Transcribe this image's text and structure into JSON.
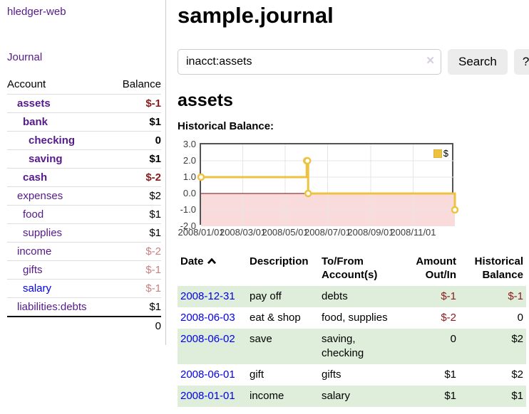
{
  "colors": {
    "link_purple": "#551a8b",
    "link_blue": "#0000ee",
    "negative_strong": "#8b1a1a",
    "negative_soft": "#c98080",
    "row_stripe_green": "#deeeda",
    "chart_line_gold": "#edc240",
    "button_gray": "#ececec"
  },
  "sidebar": {
    "app_title": "hledger-web",
    "journal_link": "Journal",
    "accounts_table": {
      "account_header": "Account",
      "balance_header": "Balance",
      "rows": [
        {
          "name": "assets",
          "indent": 1,
          "bold": true,
          "balance": "$-1",
          "balance_style": "negative-strong"
        },
        {
          "name": "bank",
          "indent": 2,
          "bold": true,
          "balance": "$1",
          "balance_style": "normal"
        },
        {
          "name": "checking",
          "indent": 3,
          "bold": true,
          "balance": "0",
          "balance_style": "normal"
        },
        {
          "name": "saving",
          "indent": 3,
          "bold": true,
          "balance": "$1",
          "balance_style": "normal"
        },
        {
          "name": "cash",
          "indent": 2,
          "bold": true,
          "balance": "$-2",
          "balance_style": "negative-strong"
        },
        {
          "name": "expenses",
          "indent": 1,
          "bold": false,
          "balance": "$2",
          "balance_style": "normal"
        },
        {
          "name": "food",
          "indent": 2,
          "bold": false,
          "balance": "$1",
          "balance_style": "normal"
        },
        {
          "name": "supplies",
          "indent": 2,
          "bold": false,
          "balance": "$1",
          "balance_style": "normal"
        },
        {
          "name": "income",
          "indent": 1,
          "bold": false,
          "balance": "$-2",
          "balance_style": "negative-soft"
        },
        {
          "name": "gifts",
          "indent": 2,
          "bold": false,
          "balance": "$-1",
          "balance_style": "negative-soft"
        },
        {
          "name": "salary",
          "indent": 2,
          "bold": false,
          "balance": "$-1",
          "balance_style": "negative-soft",
          "link_color": "blue"
        },
        {
          "name": "liabilities:debts",
          "indent": 1,
          "bold": false,
          "balance": "$1",
          "balance_style": "normal"
        }
      ],
      "total": "0"
    }
  },
  "main": {
    "title": "sample.journal",
    "search": {
      "value": "inacct:assets",
      "clear_icon": "✕",
      "search_button": "Search",
      "help_button": "?"
    },
    "account_heading": "assets",
    "chart_title": "Historical Balance:"
  },
  "chart_data": {
    "type": "line",
    "step": true,
    "title": "Historical Balance",
    "legend": {
      "label": "$",
      "position": "top-right"
    },
    "x_range": [
      "2008-01-01",
      "2008-12-31"
    ],
    "ylim": [
      -2,
      3
    ],
    "y_ticks": [
      3,
      2,
      1,
      0,
      -1,
      -2
    ],
    "x_ticks": [
      {
        "date": "2008-01-01",
        "label": "2008/01/01"
      },
      {
        "date": "2008-03-01",
        "label": "2008/03/01"
      },
      {
        "date": "2008-05-01",
        "label": "2008/05/01"
      },
      {
        "date": "2008-07-01",
        "label": "2008/07/01"
      },
      {
        "date": "2008-09-01",
        "label": "2008/09/01"
      },
      {
        "date": "2008-11-01",
        "label": "2008/11/01"
      }
    ],
    "series": [
      {
        "name": "$",
        "color": "#edc240",
        "points": [
          [
            "2008-01-01",
            1
          ],
          [
            "2008-06-01",
            2
          ],
          [
            "2008-06-02",
            2
          ],
          [
            "2008-06-03",
            0
          ],
          [
            "2008-12-31",
            -1
          ]
        ]
      }
    ],
    "grid": true,
    "grid_color": "#e6e6e6",
    "negative_region_fill": "#f9dbdb",
    "zero_line_color": "#8b0000",
    "plot_border_color": "#545454"
  },
  "register_table": {
    "headers": {
      "date": "Date",
      "description": "Description",
      "accounts": "To/From\nAccount(s)",
      "amount": "Amount\nOut/In",
      "balance": "Historical\nBalance"
    },
    "sort": {
      "column": "date",
      "direction": "ascending"
    },
    "rows": [
      {
        "date": "2008-12-31",
        "description": "pay off",
        "accounts": "debts",
        "amount": "$-1",
        "amount_negative": true,
        "balance": "$-1",
        "balance_negative": true
      },
      {
        "date": "2008-06-03",
        "description": "eat & shop",
        "accounts": "food, supplies",
        "amount": "$-2",
        "amount_negative": true,
        "balance": "0",
        "balance_negative": false
      },
      {
        "date": "2008-06-02",
        "description": "save",
        "accounts": "saving, checking",
        "amount": "0",
        "amount_negative": false,
        "balance": "$2",
        "balance_negative": false
      },
      {
        "date": "2008-06-01",
        "description": "gift",
        "accounts": "gifts",
        "amount": "$1",
        "amount_negative": false,
        "balance": "$2",
        "balance_negative": false
      },
      {
        "date": "2008-01-01",
        "description": "income",
        "accounts": "salary",
        "amount": "$1",
        "amount_negative": false,
        "balance": "$1",
        "balance_negative": false
      }
    ]
  }
}
